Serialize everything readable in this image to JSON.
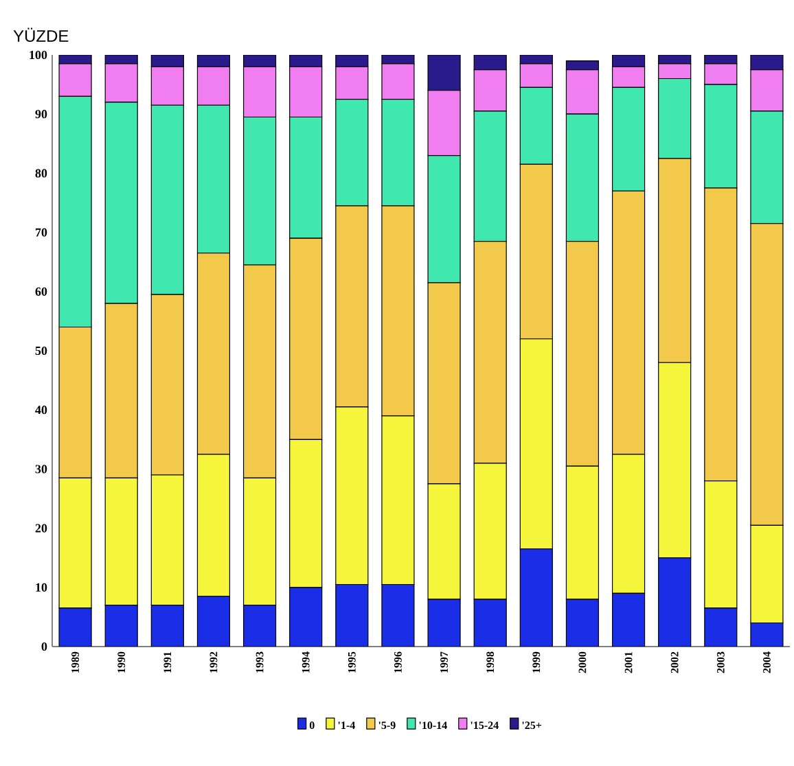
{
  "chart_data": {
    "type": "bar",
    "stacked": true,
    "ylabel": "YÜZDE",
    "categories": [
      "1989",
      "1990",
      "1991",
      "1992",
      "1993",
      "1994",
      "1995",
      "1996",
      "1997",
      "1998",
      "1999",
      "2000",
      "2001",
      "2002",
      "2003",
      "2004"
    ],
    "series": [
      {
        "name": "0",
        "color": "#1a2ee8",
        "values": [
          6.5,
          7,
          7,
          8.5,
          7,
          10,
          10.5,
          10.5,
          8,
          8,
          16.5,
          8,
          9,
          15,
          6.5,
          4
        ]
      },
      {
        "name": "'1-4",
        "color": "#f5f53c",
        "values": [
          22,
          21.5,
          22,
          24,
          21.5,
          25,
          30,
          28.5,
          19.5,
          23,
          35.5,
          22.5,
          23.5,
          33,
          21.5,
          16.5
        ]
      },
      {
        "name": "'5-9",
        "color": "#f2c94a",
        "values": [
          25.5,
          29.5,
          30.5,
          34,
          36,
          34,
          34,
          35.5,
          34,
          37.5,
          29.5,
          38,
          44.5,
          34.5,
          49.5,
          51
        ]
      },
      {
        "name": "'10-14",
        "color": "#40e8b0",
        "values": [
          39,
          34,
          32,
          25,
          25,
          20.5,
          18,
          18,
          21.5,
          22,
          13,
          21.5,
          17.5,
          13.5,
          17.5,
          19
        ]
      },
      {
        "name": "'15-24",
        "color": "#f07ef0",
        "values": [
          5.5,
          6.5,
          6.5,
          6.5,
          8.5,
          8.5,
          5.5,
          6,
          11,
          7,
          4,
          7.5,
          3.5,
          2.5,
          3.5,
          7
        ]
      },
      {
        "name": "'25+",
        "color": "#2a1a8c",
        "values": [
          1.5,
          1.5,
          2,
          2,
          2,
          2,
          2,
          1.5,
          6,
          2.5,
          1.5,
          1.5,
          2,
          1.5,
          1.5,
          2.5
        ]
      }
    ],
    "ylim": [
      0,
      100
    ],
    "yticks": [
      0,
      10,
      20,
      30,
      40,
      50,
      60,
      70,
      80,
      90,
      100
    ],
    "legend": "bottom"
  }
}
